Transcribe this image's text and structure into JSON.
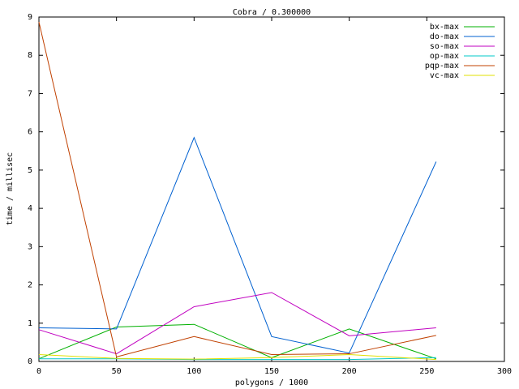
{
  "chart_data": {
    "type": "line",
    "title": "Cobra / 0.300000",
    "x_label": "polygons / 1000",
    "y_label": "time / millisec",
    "x": [
      0,
      50,
      100,
      150,
      200,
      256
    ],
    "series": [
      {
        "name": "bx-max",
        "color": "#00b000",
        "values": [
          0.07,
          0.9,
          0.97,
          0.1,
          0.85,
          0.07
        ]
      },
      {
        "name": "do-max",
        "color": "#0060d0",
        "values": [
          0.88,
          0.85,
          5.85,
          0.65,
          0.22,
          5.22
        ]
      },
      {
        "name": "so-max",
        "color": "#c000c0",
        "values": [
          0.83,
          0.2,
          1.43,
          1.8,
          0.67,
          0.88
        ]
      },
      {
        "name": "op-max",
        "color": "#00c8c8",
        "values": [
          0.07,
          0.07,
          0.05,
          0.05,
          0.05,
          0.1
        ]
      },
      {
        "name": "pqp-max",
        "color": "#c04000",
        "values": [
          8.87,
          0.12,
          0.65,
          0.18,
          0.2,
          0.68
        ]
      },
      {
        "name": "vc-max",
        "color": "#e0e000",
        "values": [
          0.18,
          0.08,
          0.06,
          0.1,
          0.18,
          0.05
        ]
      }
    ],
    "xlim": [
      0,
      300
    ],
    "xticks": [
      0,
      50,
      100,
      150,
      200,
      250,
      300
    ],
    "ylim": [
      0,
      9
    ],
    "yticks": [
      0,
      1,
      2,
      3,
      4,
      5,
      6,
      7,
      8,
      9
    ],
    "legend": "top-right"
  }
}
